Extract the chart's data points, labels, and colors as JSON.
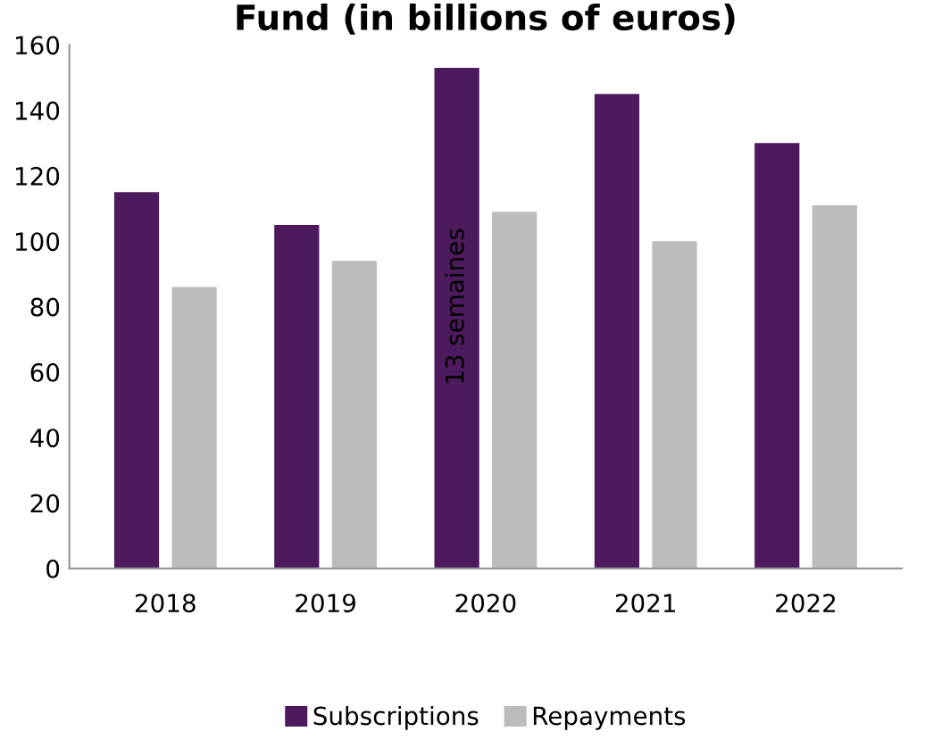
{
  "chart_data": {
    "type": "bar",
    "title": "Fund (in billions of euros)",
    "categories": [
      "2018",
      "2019",
      "2020",
      "2021",
      "2022"
    ],
    "series": [
      {
        "name": "Subscriptions",
        "color": "#4d1a5e",
        "values": [
          115,
          105,
          153,
          145,
          130
        ]
      },
      {
        "name": "Repayments",
        "color": "#bdbcbb",
        "values": [
          86,
          94,
          109,
          100,
          111
        ]
      }
    ],
    "ylim": [
      0,
      160
    ],
    "yticks": [
      0,
      20,
      40,
      60,
      80,
      100,
      120,
      140,
      160
    ],
    "grid": false,
    "legend": "bottom",
    "annotations": [
      {
        "text": "13 semaines",
        "x": "2020",
        "y": 80
      }
    ]
  }
}
